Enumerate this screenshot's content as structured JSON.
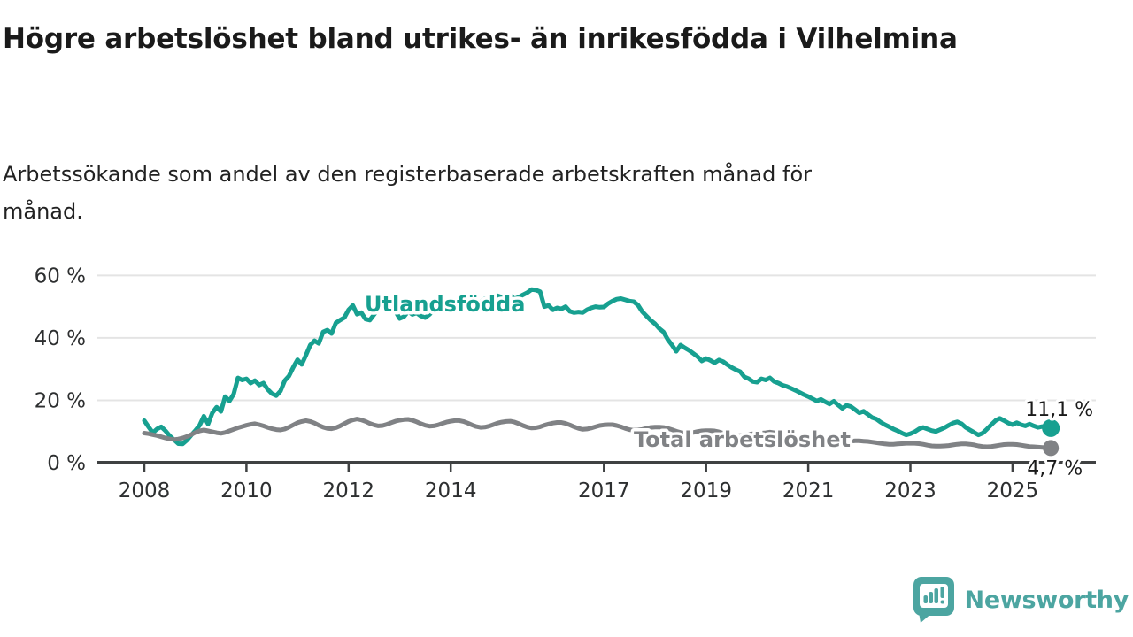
{
  "header": {
    "title": "Högre arbetslöshet bland utrikes- än inrikesfödda i Vilhelmina",
    "subtitle": "Arbetssökande som andel av den registerbaserade arbetskraften månad för månad."
  },
  "branding": {
    "logo_text": "Newsworthy",
    "logo_color": "#4ca5a1",
    "icon": "bar-chart-speech-bubble-icon"
  },
  "chart_data": {
    "type": "line",
    "title": "Högre arbetslöshet bland utrikes- än inrikesfödda i Vilhelmina",
    "subtitle": "Arbetssökande som andel av den registerbaserade arbetskraften månad för månad.",
    "unit": "%",
    "grid": true,
    "legend": "inline-labels",
    "x_axis": {
      "label": "",
      "unit": "year",
      "tick_years": [
        2008,
        2010,
        2012,
        2014,
        2017,
        2019,
        2021,
        2023,
        2025
      ],
      "range": [
        2007.9,
        2026.3
      ]
    },
    "y_axis": {
      "label": "",
      "ticks": [
        0,
        20,
        40,
        60
      ],
      "suffix": " %",
      "range": [
        0,
        62
      ]
    },
    "series": [
      {
        "name": "Utlandsfödda",
        "color": "#17a090",
        "end_label": "11,1 %",
        "end_value": 11.1,
        "start_year": 2008,
        "points_per_year": 12,
        "values": [
          13.5,
          11.5,
          9.6,
          10.8,
          11.5,
          10.2,
          8.6,
          7.3,
          6.1,
          6.0,
          7.2,
          8.8,
          10.3,
          12.0,
          14.9,
          12.4,
          16.0,
          17.8,
          16.4,
          21.2,
          19.8,
          22.0,
          27.2,
          26.5,
          26.9,
          25.5,
          26.3,
          24.9,
          25.5,
          23.5,
          22.1,
          21.5,
          23.0,
          26.3,
          27.8,
          30.6,
          33.0,
          31.5,
          34.5,
          37.7,
          39.1,
          38.2,
          41.9,
          42.5,
          41.4,
          44.8,
          45.7,
          46.5,
          49.0,
          50.4,
          47.6,
          48.1,
          46.0,
          45.7,
          47.5,
          49.5,
          51.3,
          50.4,
          50.0,
          48.5,
          46.2,
          46.8,
          48.5,
          47.5,
          48.0,
          47.0,
          46.5,
          47.5,
          49.0,
          48.5,
          49.5,
          50.0,
          50.5,
          51.5,
          52.0,
          51.0,
          50.0,
          49.5,
          50.5,
          51.5,
          52.5,
          52.0,
          53.0,
          53.5,
          53.0,
          52.5,
          53.5,
          52.5,
          53.0,
          53.8,
          54.5,
          55.5,
          55.3,
          54.8,
          50.0,
          50.4,
          49.0,
          49.6,
          49.3,
          50.0,
          48.5,
          48.1,
          48.3,
          48.1,
          49.0,
          49.6,
          50.0,
          49.8,
          49.9,
          51.0,
          51.8,
          52.4,
          52.6,
          52.2,
          51.8,
          51.6,
          50.5,
          48.4,
          47.0,
          45.6,
          44.5,
          43.0,
          41.9,
          39.5,
          37.7,
          35.7,
          37.7,
          36.8,
          36.0,
          35.0,
          34.0,
          32.6,
          33.4,
          32.8,
          32.0,
          32.9,
          32.4,
          31.4,
          30.5,
          29.8,
          29.2,
          27.5,
          26.9,
          26.0,
          25.8,
          26.9,
          26.5,
          27.2,
          26.0,
          25.5,
          24.8,
          24.4,
          23.8,
          23.2,
          22.5,
          21.8,
          21.2,
          20.5,
          19.8,
          20.3,
          19.5,
          18.8,
          19.7,
          18.5,
          17.4,
          18.4,
          18.0,
          17.0,
          16.0,
          16.5,
          15.5,
          14.5,
          14.0,
          13.0,
          12.2,
          11.5,
          10.8,
          10.2,
          9.5,
          8.9,
          9.3,
          9.9,
          10.8,
          11.3,
          10.8,
          10.3,
          10.0,
          10.6,
          11.2,
          12.0,
          12.7,
          13.1,
          12.5,
          11.3,
          10.5,
          9.7,
          8.9,
          9.5,
          10.8,
          12.2,
          13.5,
          14.2,
          13.5,
          12.7,
          12.2,
          12.8,
          12.2,
          11.8,
          12.4,
          11.8,
          11.3,
          11.6,
          11.4,
          11.1
        ]
      },
      {
        "name": "Total arbetslöshet",
        "color": "#808285",
        "end_label": "4,7 %",
        "end_value": 4.7,
        "start_year": 2008,
        "points_per_year": 12,
        "values": [
          9.5,
          9.3,
          9.0,
          8.7,
          8.3,
          7.9,
          7.6,
          7.4,
          7.6,
          7.9,
          8.4,
          9.0,
          9.7,
          10.2,
          10.5,
          10.2,
          9.9,
          9.6,
          9.4,
          9.7,
          10.2,
          10.7,
          11.2,
          11.6,
          12.0,
          12.3,
          12.5,
          12.2,
          11.8,
          11.3,
          10.9,
          10.6,
          10.5,
          10.8,
          11.4,
          12.1,
          12.8,
          13.2,
          13.5,
          13.2,
          12.7,
          12.0,
          11.4,
          11.0,
          10.9,
          11.2,
          11.8,
          12.5,
          13.2,
          13.7,
          14.0,
          13.7,
          13.2,
          12.6,
          12.1,
          11.8,
          11.9,
          12.3,
          12.8,
          13.3,
          13.6,
          13.8,
          13.9,
          13.6,
          13.1,
          12.5,
          12.0,
          11.7,
          11.8,
          12.1,
          12.6,
          13.0,
          13.3,
          13.5,
          13.5,
          13.2,
          12.7,
          12.1,
          11.6,
          11.3,
          11.4,
          11.7,
          12.2,
          12.7,
          13.0,
          13.2,
          13.3,
          13.0,
          12.5,
          11.9,
          11.4,
          11.1,
          11.2,
          11.5,
          12.0,
          12.4,
          12.7,
          12.9,
          12.9,
          12.6,
          12.1,
          11.5,
          11.0,
          10.7,
          10.8,
          11.1,
          11.5,
          11.9,
          12.1,
          12.2,
          12.2,
          11.9,
          11.5,
          11.0,
          10.6,
          10.4,
          10.5,
          10.7,
          11.0,
          11.3,
          11.4,
          11.4,
          11.3,
          11.0,
          10.6,
          10.1,
          9.7,
          9.5,
          9.5,
          9.7,
          10.0,
          10.2,
          10.3,
          10.3,
          10.2,
          9.9,
          9.5,
          9.1,
          8.8,
          8.6,
          8.7,
          8.9,
          9.1,
          9.3,
          9.4,
          9.5,
          9.6,
          9.8,
          9.6,
          9.3,
          9.0,
          8.8,
          8.7,
          8.6,
          8.5,
          8.4,
          8.4,
          8.3,
          8.2,
          8.0,
          7.7,
          7.4,
          7.1,
          6.9,
          6.8,
          6.8,
          6.9,
          7.0,
          7.0,
          6.9,
          6.8,
          6.6,
          6.4,
          6.2,
          6.0,
          5.9,
          5.9,
          6.0,
          6.1,
          6.2,
          6.2,
          6.2,
          6.1,
          5.9,
          5.6,
          5.4,
          5.3,
          5.3,
          5.4,
          5.5,
          5.7,
          5.9,
          6.0,
          6.0,
          5.9,
          5.7,
          5.4,
          5.2,
          5.1,
          5.2,
          5.4,
          5.6,
          5.8,
          5.9,
          5.9,
          5.8,
          5.6,
          5.4,
          5.2,
          5.1,
          5.0,
          4.9,
          4.8,
          4.7
        ]
      }
    ]
  }
}
